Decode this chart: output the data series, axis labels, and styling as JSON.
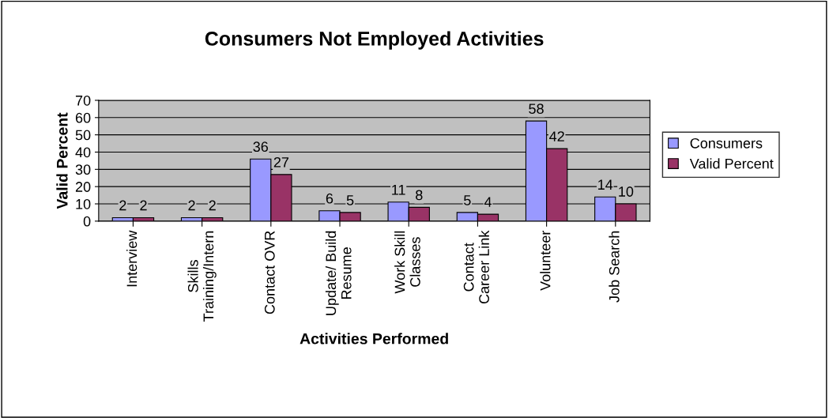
{
  "chart_data": {
    "type": "bar",
    "title": "Consumers Not Employed Activities",
    "xlabel": "Activities Performed",
    "ylabel": "Valid Percent",
    "categories": [
      "Interview",
      "Skills\nTraining/Intern",
      "Contact OVR",
      "Update/ Build\nResume",
      "Work Skill\nClasses",
      "Contact\nCareer Link",
      "Volunteer",
      "Job Search"
    ],
    "series": [
      {
        "name": "Consumers",
        "color": "#9999ff",
        "values": [
          2,
          2,
          36,
          6,
          11,
          5,
          58,
          14
        ]
      },
      {
        "name": "Valid Percent",
        "color": "#993366",
        "values": [
          2,
          2,
          27,
          5,
          8,
          4,
          42,
          10
        ]
      }
    ],
    "ylim": [
      0,
      70
    ],
    "yticks": [
      0,
      10,
      20,
      30,
      40,
      50,
      60,
      70
    ],
    "grid": "y",
    "legend": "right",
    "data_labels": true
  }
}
